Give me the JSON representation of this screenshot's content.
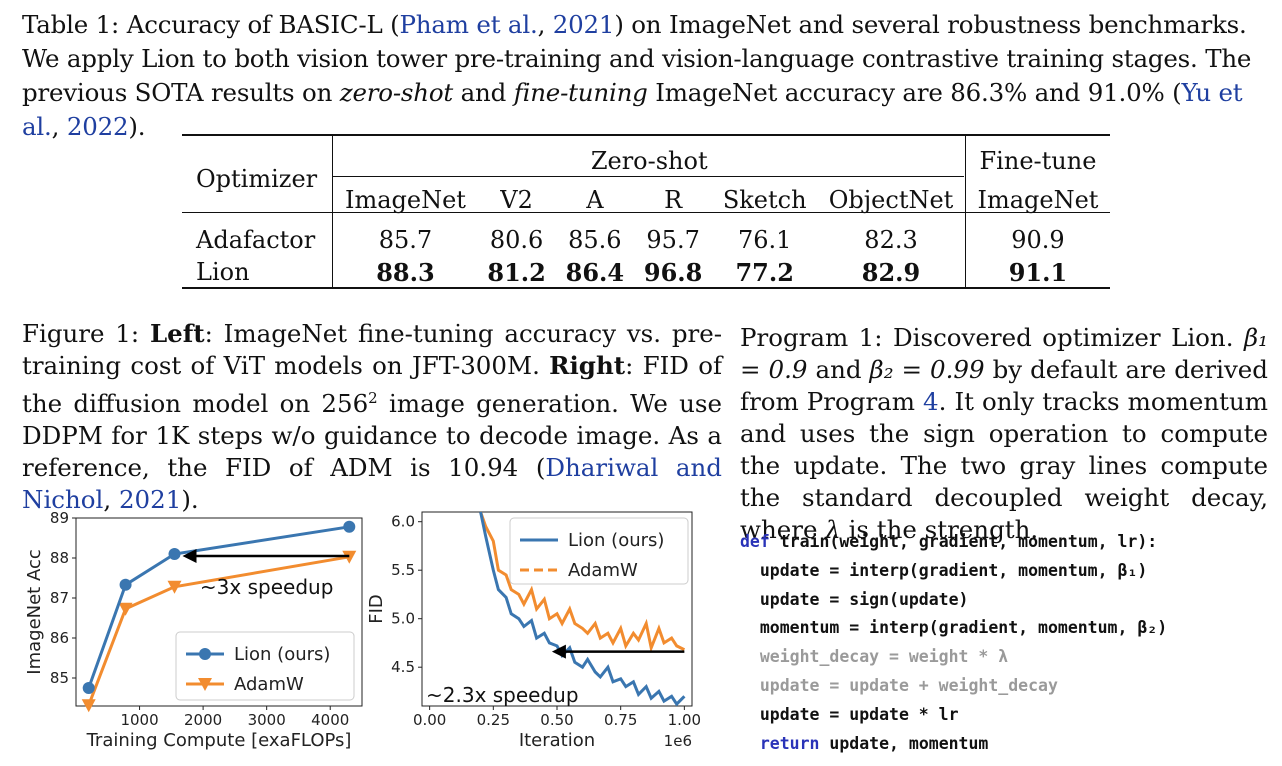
{
  "table_caption": {
    "label": "Table 1:",
    "t1": " Accuracy of BASIC-L (",
    "cite1": "Pham et al.",
    "sep1": ", ",
    "cite1_year": "2021",
    "t2": ") on ImageNet and several robustness benchmarks. We apply Lion to both vision tower pre-training and vision-language contrastive training stages. The previous SOTA results on ",
    "em1": "zero-shot",
    "t3": " and ",
    "em2": "fine-tuning",
    "t4": " ImageNet accuracy are 86.3% and 91.0% (",
    "cite2": "Yu et al.",
    "sep2": ", ",
    "cite2_year": "2022",
    "t5": ")."
  },
  "table": {
    "header_optimizer": "Optimizer",
    "group_zero_shot": "Zero-shot",
    "group_fine_tune": "Fine-tune",
    "columns": [
      "ImageNet",
      "V2",
      "A",
      "R",
      "Sketch",
      "ObjectNet",
      "ImageNet"
    ],
    "rows": [
      {
        "name": "Adafactor",
        "values": [
          "85.7",
          "80.6",
          "85.6",
          "95.7",
          "76.1",
          "82.3",
          "90.9"
        ],
        "bold": false
      },
      {
        "name": "Lion",
        "values": [
          "88.3",
          "81.2",
          "86.4",
          "96.8",
          "77.2",
          "82.9",
          "91.1"
        ],
        "bold": true
      }
    ]
  },
  "figure_caption": {
    "label": "Figure 1:",
    "left_word": "Left",
    "t1": ": ImageNet fine-tuning accuracy vs. pre-training cost of ViT models on JFT-300M. ",
    "right_word": "Right",
    "t2": ": FID of the diffusion model on 256",
    "sup": "2",
    "t3": " image generation. We use DDPM for 1K steps w/o guidance to decode image. As a reference, the FID of ADM is 10.94 (",
    "cite": "Dhariwal and Nichol",
    "sep": ", ",
    "cite_year": "2021",
    "t4": ")."
  },
  "program_caption": {
    "label": "Program 1:",
    "t1": " Discovered optimizer Lion. ",
    "beta1": "β₁ = 0.9",
    "t2": " and ",
    "beta2": "β₂ = 0.99",
    "t3": " by default are derived from Program ",
    "ref": "4",
    "t4": ". It only tracks momentum and uses the sign operation to compute the update. The two gray lines compute the standard decoupled weight decay, where ",
    "lambda": "λ",
    "t5": " is the strength."
  },
  "code": {
    "l1_kw": "def",
    "l1_rest": " train(weight, gradient, momentum, lr):",
    "l2": "  update = interp(gradient, momentum, β₁)",
    "l3": "  update = sign(update)",
    "l4": "  momentum = interp(gradient, momentum, β₂)",
    "l5": "  weight_decay = weight * λ",
    "l6": "  update = update + weight_decay",
    "l7": "  update = update * lr",
    "l8_kw": "  return",
    "l8_rest": " update, momentum"
  },
  "colors": {
    "lion": "#3a76b0",
    "adamw": "#f28c2f",
    "cite": "#1f3fa0",
    "code_keyword": "#2a33b8",
    "code_gray": "#9a9a9a"
  },
  "chart_data": [
    {
      "type": "line",
      "title": "",
      "xlabel": "Training Compute [exaFLOPs]",
      "ylabel": "ImageNet Acc",
      "xlim": [
        0,
        4500
      ],
      "ylim": [
        84.3,
        89.0
      ],
      "xticks": [
        "1000",
        "2000",
        "3000",
        "4000"
      ],
      "yticks": [
        "85",
        "86",
        "87",
        "88",
        "89"
      ],
      "legend_position": "lower-right",
      "annotation": "~3x speedup",
      "series": [
        {
          "name": "Lion (ours)",
          "marker": "circle",
          "x": [
            200,
            780,
            1550,
            4300
          ],
          "y": [
            84.75,
            87.33,
            88.1,
            88.78
          ]
        },
        {
          "name": "AdamW",
          "marker": "triangle-down",
          "x": [
            200,
            780,
            1550,
            4300
          ],
          "y": [
            84.32,
            86.73,
            87.28,
            88.03
          ]
        }
      ]
    },
    {
      "type": "line",
      "title": "",
      "xlabel": "Iteration",
      "ylabel": "FID",
      "x_scale_label": "1e6",
      "xlim": [
        -0.03,
        1.03
      ],
      "ylim": [
        4.1,
        6.1
      ],
      "xticks": [
        "0.00",
        "0.25",
        "0.50",
        "0.75",
        "1.00"
      ],
      "yticks": [
        "4.5",
        "5.0",
        "5.5",
        "6.0"
      ],
      "legend_position": "upper-right",
      "annotation": "~2.3x speedup",
      "series": [
        {
          "name": "Lion (ours)",
          "x": [
            0.2,
            0.22,
            0.25,
            0.27,
            0.3,
            0.32,
            0.35,
            0.37,
            0.4,
            0.42,
            0.45,
            0.47,
            0.5,
            0.52,
            0.55,
            0.57,
            0.6,
            0.62,
            0.65,
            0.67,
            0.7,
            0.72,
            0.75,
            0.77,
            0.8,
            0.82,
            0.85,
            0.87,
            0.9,
            0.92,
            0.95,
            0.97,
            1.0
          ],
          "y": [
            6.1,
            5.85,
            5.5,
            5.3,
            5.22,
            5.05,
            5.0,
            4.92,
            4.98,
            4.8,
            4.85,
            4.75,
            4.72,
            4.62,
            4.7,
            4.55,
            4.5,
            4.58,
            4.45,
            4.4,
            4.5,
            4.35,
            4.38,
            4.3,
            4.35,
            4.22,
            4.3,
            4.18,
            4.25,
            4.15,
            4.2,
            4.12,
            4.2
          ]
        },
        {
          "name": "AdamW",
          "x": [
            0.2,
            0.22,
            0.25,
            0.27,
            0.3,
            0.32,
            0.35,
            0.37,
            0.4,
            0.42,
            0.45,
            0.47,
            0.5,
            0.52,
            0.55,
            0.57,
            0.6,
            0.62,
            0.65,
            0.67,
            0.7,
            0.72,
            0.75,
            0.77,
            0.8,
            0.82,
            0.85,
            0.87,
            0.9,
            0.92,
            0.95,
            0.97,
            1.0
          ],
          "y": [
            6.1,
            5.95,
            5.8,
            5.5,
            5.45,
            5.3,
            5.25,
            5.15,
            5.3,
            5.1,
            5.2,
            5.0,
            5.05,
            4.95,
            5.1,
            4.95,
            4.9,
            4.85,
            4.95,
            4.8,
            4.85,
            4.75,
            4.9,
            4.72,
            4.85,
            4.78,
            4.95,
            4.7,
            4.9,
            4.75,
            4.8,
            4.72,
            4.68
          ]
        }
      ]
    }
  ]
}
